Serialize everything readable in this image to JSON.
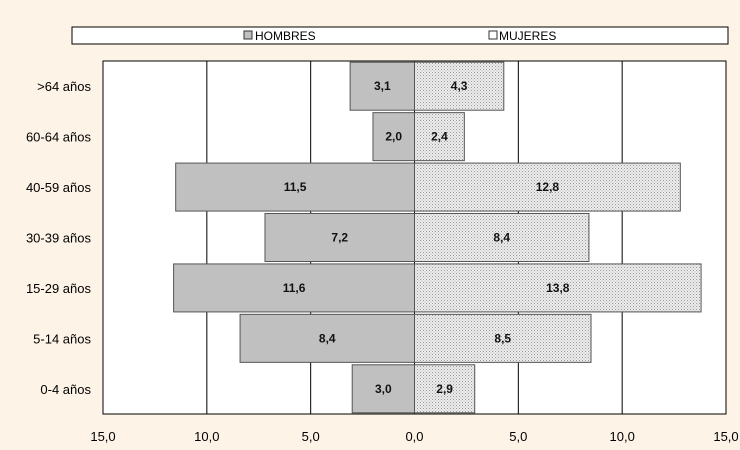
{
  "chart_data": {
    "type": "bar",
    "orientation": "horizontal",
    "title": "",
    "xlabel": "",
    "ylabel": "",
    "xlim": [
      -15,
      15
    ],
    "grid": true,
    "legend_position": "top",
    "categories": [
      "0-4 años",
      "5-14 años",
      "15-29 años",
      "30-39 años",
      "40-59 años",
      "60-64 años",
      ">64 años"
    ],
    "series": [
      {
        "name": "HOMBRES",
        "values": [
          3.0,
          8.4,
          11.6,
          7.2,
          11.5,
          2.0,
          3.1
        ],
        "labels": [
          "3,0",
          "8,4",
          "11,6",
          "7,2",
          "11,5",
          "2,0",
          "3,1"
        ],
        "color": "#c0c0c0",
        "side": "left"
      },
      {
        "name": "MUJERES",
        "values": [
          2.9,
          8.5,
          13.8,
          8.4,
          12.8,
          2.4,
          4.3
        ],
        "labels": [
          "2,9",
          "8,5",
          "13,8",
          "8,4",
          "12,8",
          "2,4",
          "4,3"
        ],
        "color": "#e4e4e4",
        "side": "right"
      }
    ],
    "tick_labels": [
      "15,0",
      "10,0",
      "5,0",
      "0,0",
      "5,0",
      "10,0",
      "15,0"
    ]
  },
  "legend": {
    "hombres_marker": "▨",
    "mujeres_marker": "□"
  }
}
